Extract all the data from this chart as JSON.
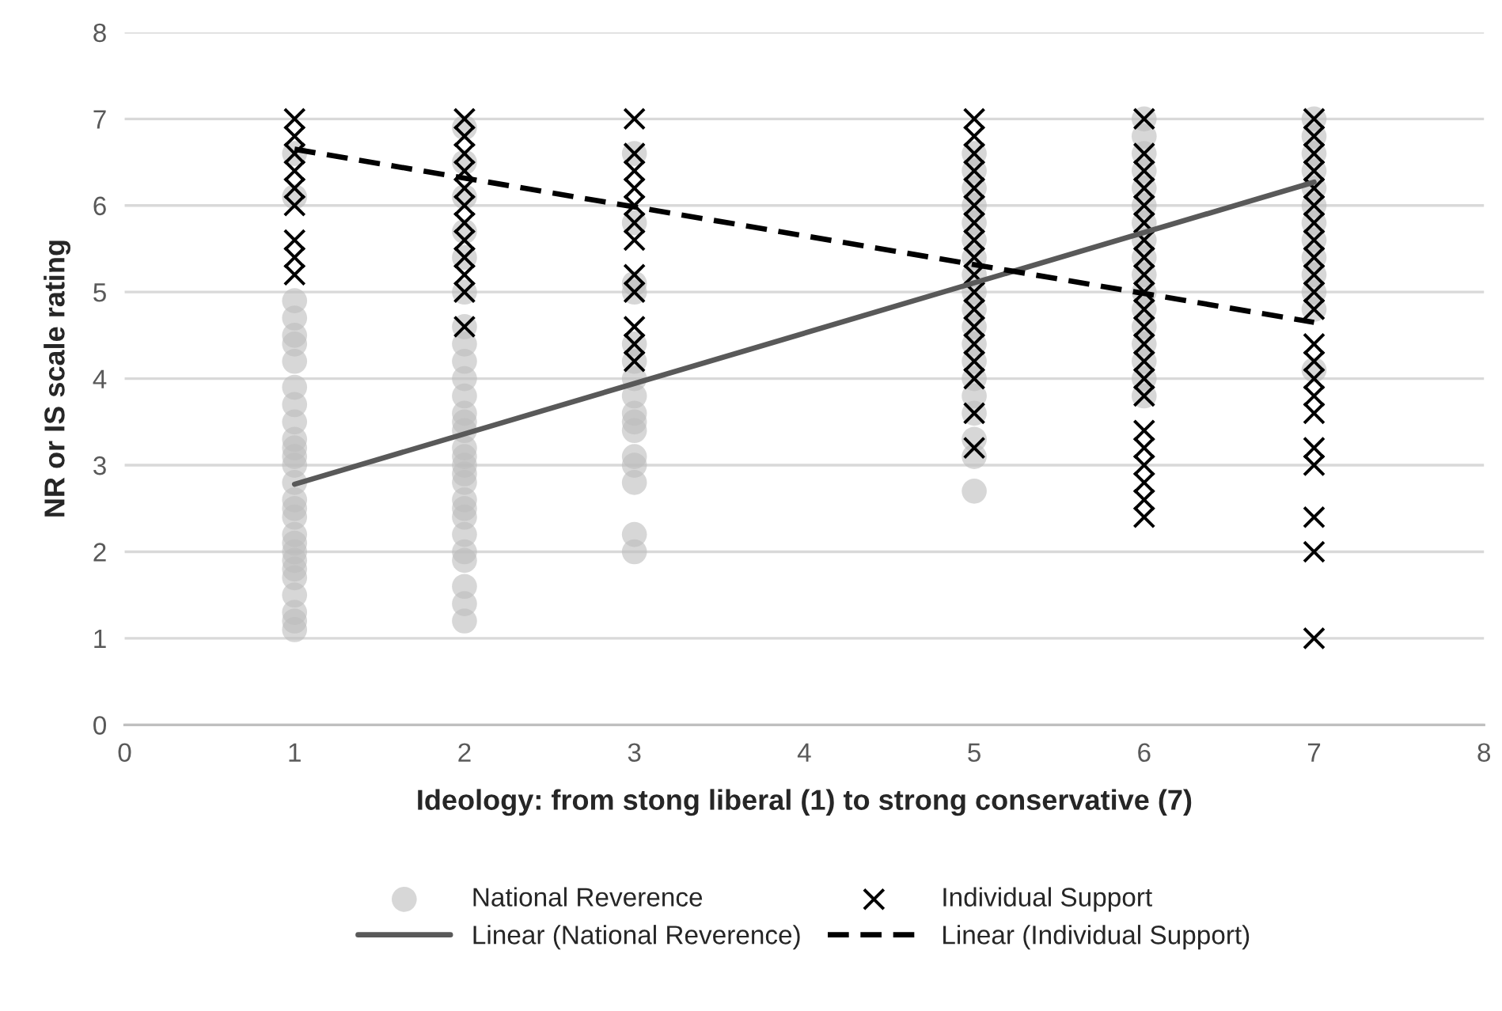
{
  "chart_data": {
    "type": "scatter",
    "xlabel": "Ideology: from stong liberal (1) to strong conservative (7)",
    "ylabel": "NR or IS scale rating",
    "xlim": [
      0,
      8
    ],
    "xticks": [
      0,
      1,
      2,
      3,
      4,
      5,
      6,
      7,
      8
    ],
    "ylim": [
      0,
      8
    ],
    "yticks": [
      0,
      1,
      2,
      3,
      4,
      5,
      6,
      7,
      8
    ],
    "grid": "y",
    "legend": "bottom",
    "series": [
      {
        "name": "National Reverence",
        "marker": "circle",
        "color": "#bdbdbd",
        "x": [
          1,
          1,
          1,
          1,
          1,
          1,
          1,
          1,
          1,
          1,
          1,
          1,
          1,
          1,
          1,
          1,
          1,
          1,
          1,
          1,
          1,
          1,
          1,
          1,
          1,
          1,
          1,
          1,
          2,
          2,
          2,
          2,
          2,
          2,
          2,
          2,
          2,
          2,
          2,
          2,
          2,
          2,
          2,
          2,
          2,
          2,
          2,
          2,
          2,
          2,
          2,
          2,
          2,
          2,
          2,
          2,
          3,
          3,
          3,
          3,
          3,
          3,
          3,
          3,
          3,
          3,
          3,
          3,
          3,
          3,
          3,
          3,
          5,
          5,
          5,
          5,
          5,
          5,
          5,
          5,
          5,
          5,
          5,
          5,
          5,
          5,
          5,
          5,
          5,
          5,
          5,
          6,
          6,
          6,
          6,
          6,
          6,
          6,
          6,
          6,
          6,
          6,
          6,
          6,
          6,
          6,
          6,
          6,
          7,
          7,
          7,
          7,
          7,
          7,
          7,
          7,
          7,
          7,
          7,
          7,
          7
        ],
        "values": [
          1.1,
          1.2,
          1.3,
          1.5,
          1.7,
          1.8,
          1.9,
          2.0,
          2.1,
          2.2,
          2.4,
          2.5,
          2.6,
          2.8,
          3.0,
          3.1,
          3.2,
          3.3,
          3.5,
          3.7,
          3.9,
          4.2,
          4.4,
          4.5,
          4.7,
          4.9,
          6.1,
          6.6,
          1.2,
          1.4,
          1.6,
          1.9,
          2.0,
          2.2,
          2.4,
          2.5,
          2.6,
          2.8,
          2.9,
          3.0,
          3.1,
          3.2,
          3.4,
          3.5,
          3.6,
          3.8,
          4.0,
          4.2,
          4.4,
          4.6,
          5.0,
          5.4,
          5.7,
          6.1,
          6.5,
          6.9,
          2.0,
          2.2,
          2.8,
          3.0,
          3.1,
          3.4,
          3.5,
          3.6,
          3.8,
          4.0,
          4.2,
          4.4,
          5.0,
          5.1,
          5.8,
          6.6,
          2.7,
          3.1,
          3.3,
          3.6,
          3.8,
          4.0,
          4.2,
          4.4,
          4.6,
          4.8,
          5.0,
          5.2,
          5.4,
          5.6,
          5.8,
          6.0,
          6.2,
          6.4,
          6.6,
          3.8,
          4.0,
          4.2,
          4.4,
          4.6,
          4.8,
          5.0,
          5.2,
          5.4,
          5.6,
          5.8,
          6.0,
          6.2,
          6.4,
          6.6,
          6.8,
          7.0,
          4.1,
          4.8,
          5.0,
          5.2,
          5.4,
          5.6,
          5.8,
          6.0,
          6.2,
          6.4,
          6.6,
          6.8,
          7.0
        ]
      },
      {
        "name": "Individual Support",
        "marker": "cross",
        "color": "#000000",
        "x": [
          1,
          1,
          1,
          1,
          1,
          1,
          1,
          1,
          1,
          2,
          2,
          2,
          2,
          2,
          2,
          2,
          2,
          2,
          2,
          2,
          2,
          3,
          3,
          3,
          3,
          3,
          3,
          3,
          3,
          3,
          3,
          3,
          3,
          5,
          5,
          5,
          5,
          5,
          5,
          5,
          5,
          5,
          5,
          5,
          5,
          5,
          5,
          5,
          5,
          5,
          5,
          6,
          6,
          6,
          6,
          6,
          6,
          6,
          6,
          6,
          6,
          6,
          6,
          6,
          6,
          6,
          6,
          6,
          6,
          6,
          6,
          6,
          6,
          7,
          7,
          7,
          7,
          7,
          7,
          7,
          7,
          7,
          7,
          7,
          7,
          7,
          7,
          7,
          7,
          7,
          7,
          7,
          7,
          7,
          7
        ],
        "values": [
          5.2,
          5.4,
          5.6,
          6.0,
          6.2,
          6.4,
          6.6,
          6.8,
          7.0,
          4.6,
          5.0,
          5.2,
          5.4,
          5.6,
          5.8,
          6.0,
          6.2,
          6.4,
          6.6,
          6.8,
          7.0,
          4.2,
          4.4,
          4.6,
          5.0,
          5.2,
          5.6,
          5.8,
          6.0,
          6.2,
          6.4,
          6.6,
          7.0,
          3.2,
          3.6,
          4.0,
          4.2,
          4.4,
          4.6,
          4.8,
          5.0,
          5.2,
          5.4,
          5.6,
          5.8,
          6.0,
          6.2,
          6.4,
          6.6,
          6.8,
          7.0,
          2.4,
          2.6,
          2.8,
          3.0,
          3.2,
          3.4,
          3.8,
          4.0,
          4.2,
          4.4,
          4.6,
          4.8,
          5.0,
          5.2,
          5.4,
          5.6,
          5.8,
          6.0,
          6.2,
          6.4,
          6.6,
          7.0,
          1.0,
          2.0,
          2.4,
          3.0,
          3.2,
          3.6,
          3.8,
          4.0,
          4.2,
          4.4,
          4.8,
          5.0,
          5.2,
          5.4,
          5.6,
          5.8,
          6.0,
          6.2,
          6.4,
          6.6,
          6.8,
          7.0
        ]
      },
      {
        "name": "Linear (National Reverence)",
        "type": "line",
        "line_style": "solid",
        "color": "#595959",
        "x": [
          1,
          7
        ],
        "values": [
          2.78,
          6.27
        ]
      },
      {
        "name": "Linear (Individual Support)",
        "type": "line",
        "line_style": "dashed",
        "color": "#000000",
        "x": [
          1,
          7
        ],
        "values": [
          6.65,
          4.65
        ]
      }
    ]
  }
}
